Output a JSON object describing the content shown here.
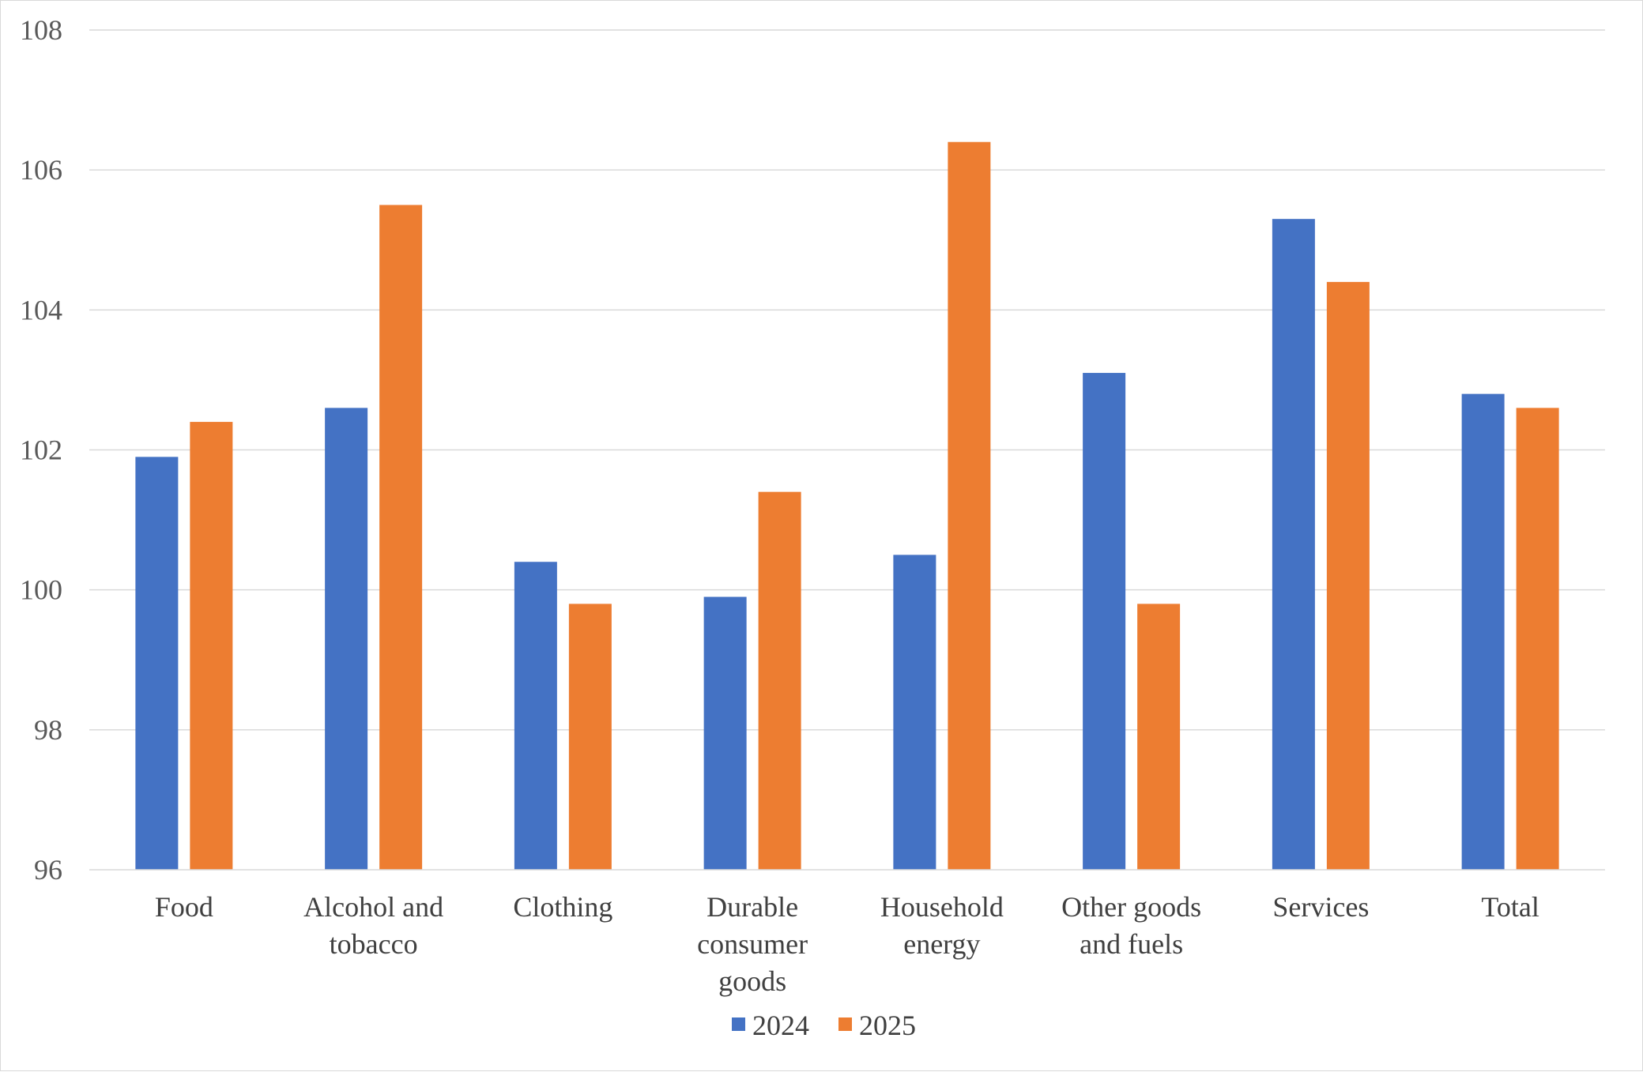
{
  "chart_data": {
    "type": "bar",
    "title": "",
    "xlabel": "",
    "ylabel": "",
    "ylim": [
      96,
      108
    ],
    "yticks": [
      96,
      98,
      100,
      102,
      104,
      106,
      108
    ],
    "grid": true,
    "legend_position": "bottom",
    "categories": [
      [
        "Food"
      ],
      [
        "Alcohol and",
        "tobacco"
      ],
      [
        "Clothing"
      ],
      [
        "Durable",
        "consumer",
        "goods"
      ],
      [
        "Household",
        "energy"
      ],
      [
        "Other goods",
        "and fuels"
      ],
      [
        "Services"
      ],
      [
        "Total"
      ]
    ],
    "series": [
      {
        "name": "2024",
        "color": "#4472c4",
        "values": [
          101.9,
          102.6,
          100.4,
          99.9,
          100.5,
          103.1,
          105.3,
          102.8
        ]
      },
      {
        "name": "2025",
        "color": "#ed7d31",
        "values": [
          102.4,
          105.5,
          99.8,
          101.4,
          106.4,
          99.8,
          104.4,
          102.6
        ]
      }
    ]
  }
}
